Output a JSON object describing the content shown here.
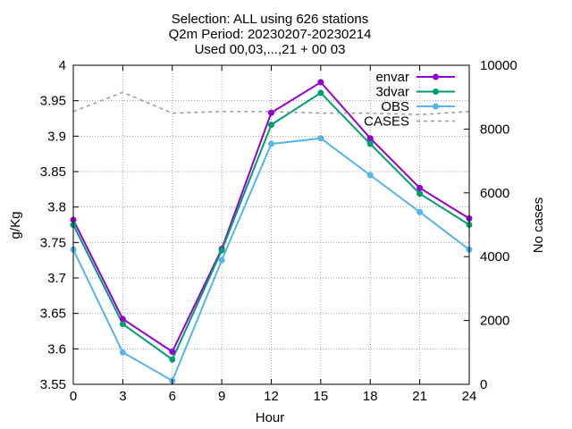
{
  "chart_data": {
    "type": "line",
    "title_lines": [
      "Selection: ALL using   626 stations",
      "Q2m   Period: 20230207-20230214",
      "Used 00,03,...,21 + 00 03"
    ],
    "xlabel": "Hour",
    "ylabel": "g/Kg",
    "y2label": "No cases",
    "x": [
      0,
      3,
      6,
      9,
      12,
      15,
      18,
      21,
      24
    ],
    "xlim": [
      0,
      24
    ],
    "ylim": [
      3.55,
      4.0
    ],
    "y2lim": [
      0,
      10000
    ],
    "x_ticks": [
      0,
      3,
      6,
      9,
      12,
      15,
      18,
      21,
      24
    ],
    "y_ticks": [
      "3.55",
      "3.6",
      "3.65",
      "3.7",
      "3.75",
      "3.8",
      "3.85",
      "3.9",
      "3.95",
      "4"
    ],
    "y2_ticks": [
      "0",
      "2000",
      "4000",
      "6000",
      "8000",
      "10000"
    ],
    "grid": true,
    "legend_position": "top-right",
    "series": [
      {
        "name": "envar",
        "axis": "left",
        "color": "#9400d3",
        "marker": "filled-circle",
        "values": [
          3.782,
          3.642,
          3.596,
          3.741,
          3.933,
          3.976,
          3.897,
          3.827,
          3.784
        ]
      },
      {
        "name": "3dvar",
        "axis": "left",
        "color": "#009e73",
        "marker": "filled-circle",
        "values": [
          3.775,
          3.635,
          3.585,
          3.739,
          3.916,
          3.961,
          3.889,
          3.819,
          3.775
        ]
      },
      {
        "name": "OBS",
        "axis": "left",
        "color": "#56b4e9",
        "marker": "filled-circle",
        "values": [
          3.74,
          3.595,
          3.555,
          3.725,
          3.889,
          3.897,
          3.845,
          3.793,
          3.74
        ]
      },
      {
        "name": "CASES",
        "axis": "right",
        "color": "#999999",
        "dashed": true,
        "values": [
          8550,
          9150,
          8500,
          8550,
          8550,
          8500,
          8500,
          8450,
          8550
        ]
      }
    ]
  }
}
